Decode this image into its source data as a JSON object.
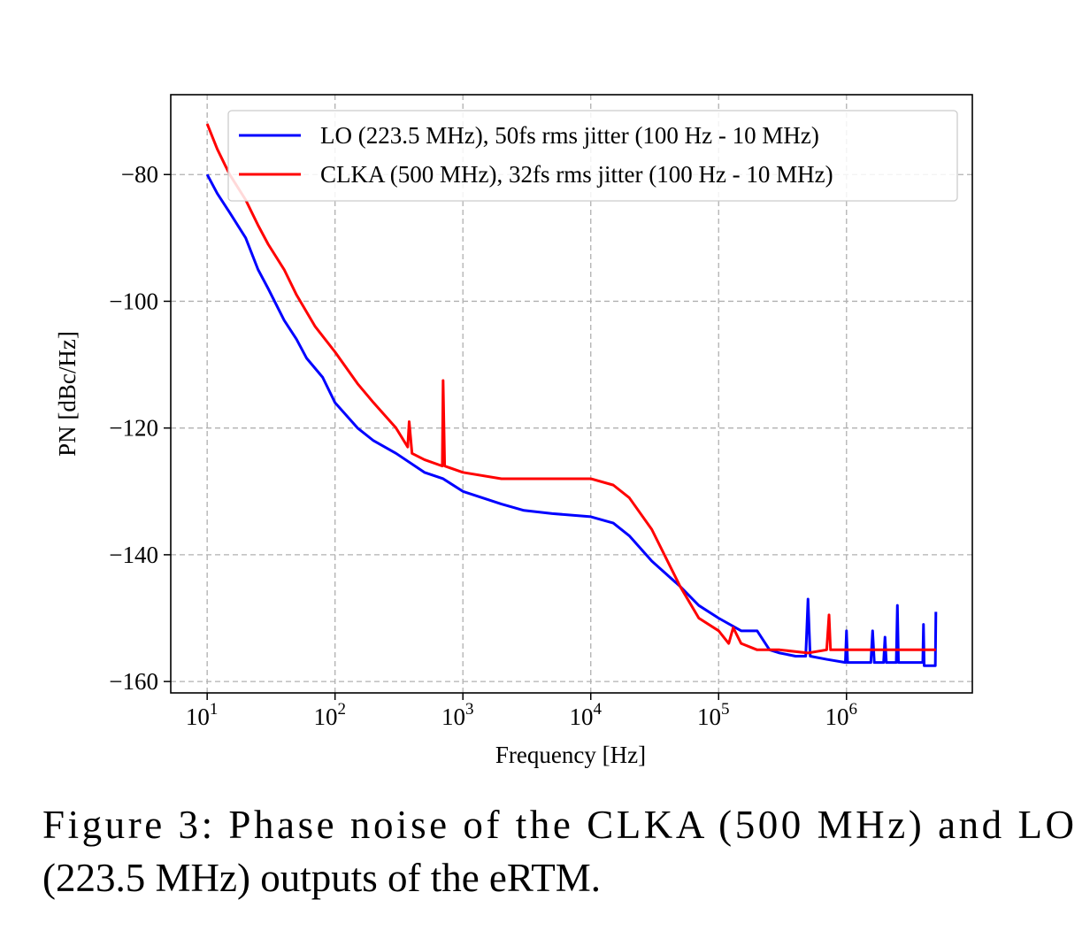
{
  "chart_data": {
    "type": "line",
    "xlabel": "Frequency [Hz]",
    "ylabel": "PN [dBc/Hz]",
    "xscale": "log",
    "grid": true,
    "legend": "upper right",
    "xlim": [
      5.19,
      9640000
    ],
    "ylim": [
      -161.8,
      -67.4
    ],
    "xticks": [
      {
        "value": 10,
        "label": "10",
        "exponent": "1"
      },
      {
        "value": 100,
        "label": "10",
        "exponent": "2"
      },
      {
        "value": 1000,
        "label": "10",
        "exponent": "3"
      },
      {
        "value": 10000,
        "label": "10",
        "exponent": "4"
      },
      {
        "value": 100000,
        "label": "10",
        "exponent": "5"
      },
      {
        "value": 1000000,
        "label": "10",
        "exponent": "6"
      }
    ],
    "yticks": [
      {
        "value": -80,
        "label": "−80"
      },
      {
        "value": -100,
        "label": "−100"
      },
      {
        "value": -120,
        "label": "−120"
      },
      {
        "value": -140,
        "label": "−140"
      },
      {
        "value": -160,
        "label": "−160"
      }
    ],
    "series": [
      {
        "name": "LO (223.5 MHz), 50fs rms jitter (100 Hz - 10 MHz)",
        "color": "#0000ff",
        "x": [
          10,
          12,
          15,
          20,
          25,
          30,
          40,
          50,
          60,
          80,
          100,
          150,
          200,
          300,
          500,
          700,
          1000,
          2000,
          3000,
          5000,
          10000,
          15000,
          20000,
          30000,
          50000,
          70000,
          100000,
          150000,
          200000,
          250000,
          300000,
          400000,
          480000,
          500000,
          520000,
          700000,
          980000,
          1000000,
          1020000,
          1550000,
          1600000,
          1650000,
          1950000,
          2000000,
          2050000,
          2450000,
          2500000,
          2550000,
          3000000,
          3950000,
          4000000,
          4050000,
          4500000,
          4950000,
          5000000
        ],
        "values": [
          -80,
          -83,
          -86,
          -90,
          -95,
          -98,
          -103,
          -106,
          -109,
          -112,
          -116,
          -120,
          -122,
          -124,
          -127,
          -128,
          -130,
          -132,
          -133,
          -133.5,
          -134,
          -135,
          -137,
          -141,
          -145,
          -148,
          -150,
          -152,
          -152,
          -155,
          -155.5,
          -156,
          -156,
          -147,
          -156,
          -156.5,
          -157,
          -152,
          -157,
          -157,
          -152,
          -157,
          -157,
          -153,
          -157,
          -157,
          -148,
          -157,
          -157,
          -157,
          -151,
          -157.5,
          -157.5,
          -157.5,
          -149
        ]
      },
      {
        "name": "CLKA (500 MHz), 32fs rms jitter (100 Hz - 10 MHz)",
        "color": "#ff0000",
        "x": [
          10,
          12,
          15,
          20,
          25,
          30,
          40,
          50,
          70,
          100,
          150,
          200,
          300,
          370,
          380,
          400,
          500,
          690,
          700,
          720,
          1000,
          2000,
          5000,
          10000,
          15000,
          20000,
          30000,
          50000,
          70000,
          100000,
          120000,
          130000,
          150000,
          200000,
          300000,
          500000,
          700000,
          730000,
          750000,
          1000000,
          5000000
        ],
        "values": [
          -72,
          -76,
          -80,
          -84,
          -88,
          -91,
          -95,
          -99,
          -104,
          -108,
          -113,
          -116,
          -120,
          -123,
          -119,
          -124,
          -125,
          -126,
          -112.5,
          -126,
          -127,
          -128,
          -128,
          -128,
          -129,
          -131,
          -136,
          -145,
          -150,
          -152,
          -154,
          -151.5,
          -154,
          -155,
          -155,
          -155.5,
          -155,
          -149.5,
          -155,
          -155,
          -155
        ]
      }
    ]
  },
  "caption": [
    "Figure 3:  Phase noise of the CLKA (500 MHz) and LO",
    "(223.5 MHz) outputs of the eRTM."
  ]
}
